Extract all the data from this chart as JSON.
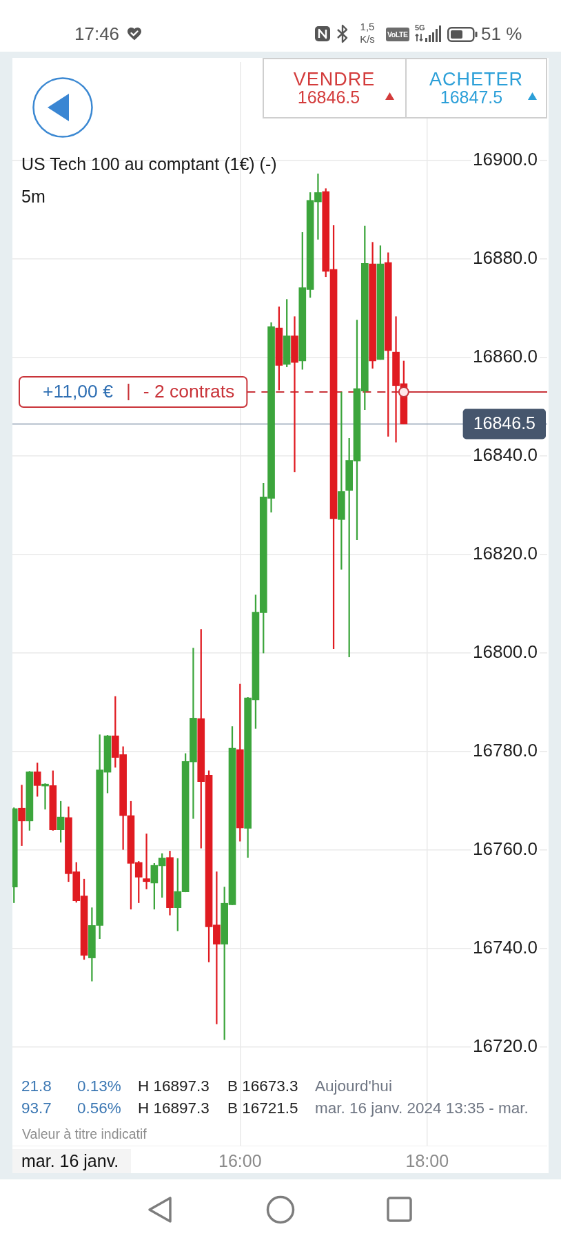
{
  "chart_data": {
    "type": "candlestick",
    "title": "US Tech 100 au comptant (1€) (-)",
    "subtitle": "5m",
    "x": [
      "2024-01-16T13:35",
      "2024-01-16T13:40",
      "2024-01-16T13:45",
      "2024-01-16T13:50",
      "2024-01-16T13:55",
      "2024-01-16T14:00",
      "2024-01-16T14:05",
      "2024-01-16T14:10",
      "2024-01-16T14:15",
      "2024-01-16T14:20",
      "2024-01-16T14:25",
      "2024-01-16T14:30",
      "2024-01-16T14:35",
      "2024-01-16T14:40",
      "2024-01-16T14:45",
      "2024-01-16T14:50",
      "2024-01-16T14:55",
      "2024-01-16T15:00",
      "2024-01-16T15:05",
      "2024-01-16T15:10",
      "2024-01-16T15:15",
      "2024-01-16T15:20",
      "2024-01-16T15:25",
      "2024-01-16T15:30",
      "2024-01-16T15:35",
      "2024-01-16T15:40",
      "2024-01-16T15:45",
      "2024-01-16T15:50",
      "2024-01-16T15:55",
      "2024-01-16T16:00",
      "2024-01-16T16:05",
      "2024-01-16T16:10",
      "2024-01-16T16:15",
      "2024-01-16T16:20",
      "2024-01-16T16:25",
      "2024-01-16T16:30",
      "2024-01-16T16:35",
      "2024-01-16T16:40",
      "2024-01-16T16:45",
      "2024-01-16T16:50",
      "2024-01-16T16:55",
      "2024-01-16T17:00",
      "2024-01-16T17:05",
      "2024-01-16T17:10",
      "2024-01-16T17:15",
      "2024-01-16T17:20",
      "2024-01-16T17:25",
      "2024-01-16T17:30",
      "2024-01-16T17:35",
      "2024-01-16T17:40",
      "2024-01-16T17:45"
    ],
    "ohlc": [
      [
        16752.5,
        16768.6,
        16749.3,
        16768.4
      ],
      [
        16768.5,
        16773.2,
        16760.9,
        16765.9
      ],
      [
        16765.9,
        16776.0,
        16764.0,
        16775.9
      ],
      [
        16775.9,
        16777.7,
        16770.9,
        16773.1
      ],
      [
        16773.0,
        16773.5,
        16768.3,
        16773.4
      ],
      [
        16773.1,
        16776.1,
        16764.0,
        16764.1
      ],
      [
        16764.1,
        16769.9,
        16761.6,
        16766.7
      ],
      [
        16766.6,
        16768.8,
        16753.6,
        16755.2
      ],
      [
        16755.6,
        16757.5,
        16749.4,
        16749.7
      ],
      [
        16750.7,
        16754.1,
        16737.8,
        16738.6
      ],
      [
        16738.1,
        16748.3,
        16733.4,
        16744.7
      ],
      [
        16744.7,
        16783.4,
        16742.0,
        16776.3
      ],
      [
        16775.8,
        16783.3,
        16771.6,
        16783.2
      ],
      [
        16783.2,
        16791.2,
        16776.8,
        16778.8
      ],
      [
        16779.4,
        16781.0,
        16760.1,
        16767.0
      ],
      [
        16767.0,
        16769.9,
        16748.0,
        16757.3
      ],
      [
        16757.5,
        16757.7,
        16749.3,
        16754.5
      ],
      [
        16754.2,
        16763.3,
        16752.1,
        16753.6
      ],
      [
        16753.3,
        16757.3,
        16748.0,
        16756.9
      ],
      [
        16756.8,
        16759.3,
        16750.4,
        16758.4
      ],
      [
        16758.5,
        16759.8,
        16746.8,
        16748.3
      ],
      [
        16748.3,
        16758.3,
        16743.6,
        16751.6
      ],
      [
        16751.5,
        16779.6,
        16751.5,
        16778.0
      ],
      [
        16777.9,
        16801.0,
        16766.4,
        16786.8
      ],
      [
        16786.7,
        16804.8,
        16760.4,
        16773.9
      ],
      [
        16775.2,
        16776.1,
        16737.3,
        16744.4
      ],
      [
        16744.8,
        16755.6,
        16724.7,
        16740.9
      ],
      [
        16740.9,
        16752.5,
        16721.5,
        16749.2
      ],
      [
        16748.9,
        16785.1,
        16748.9,
        16780.7
      ],
      [
        16780.4,
        16793.7,
        16761.8,
        16764.5
      ],
      [
        16764.4,
        16791.0,
        16758.5,
        16790.9
      ],
      [
        16790.5,
        16811.8,
        16784.7,
        16808.3
      ],
      [
        16808.2,
        16834.5,
        16800.0,
        16831.7
      ],
      [
        16831.4,
        16867.1,
        16828.6,
        16866.3
      ],
      [
        16866.0,
        16870.3,
        16853.4,
        16858.4
      ],
      [
        16858.6,
        16871.8,
        16858.1,
        16864.4
      ],
      [
        16864.4,
        16868.3,
        16836.8,
        16859.0
      ],
      [
        16859.3,
        16885.4,
        16857.6,
        16874.2
      ],
      [
        16873.8,
        16893.5,
        16872.2,
        16891.9
      ],
      [
        16891.6,
        16897.3,
        16884.0,
        16893.5
      ],
      [
        16893.7,
        16894.3,
        16876.4,
        16877.5
      ],
      [
        16877.9,
        16886.8,
        16800.9,
        16827.3
      ],
      [
        16827.1,
        16853.0,
        16817.0,
        16832.8
      ],
      [
        16833.0,
        16843.6,
        16799.2,
        16839.1
      ],
      [
        16839.0,
        16867.6,
        16823.0,
        16853.7
      ],
      [
        16853.2,
        16886.7,
        16849.4,
        16879.1
      ],
      [
        16879.0,
        16883.4,
        16857.8,
        16859.3
      ],
      [
        16859.6,
        16882.7,
        16859.6,
        16879.0
      ],
      [
        16879.3,
        16881.3,
        16844.0,
        16861.4
      ],
      [
        16861.1,
        16868.3,
        16842.8,
        16854.3
      ],
      [
        16854.7,
        16859.3,
        16846.5,
        16846.5
      ]
    ],
    "colors": [
      "#3ca53c",
      "#e01b21",
      "#3ca53c",
      "#e01b21",
      "#3ca53c",
      "#e01b21",
      "#3ca53c",
      "#e01b21",
      "#e01b21",
      "#e01b21",
      "#3ca53c",
      "#3ca53c",
      "#3ca53c",
      "#e01b21",
      "#e01b21",
      "#e01b21",
      "#e01b21",
      "#e01b21",
      "#3ca53c",
      "#3ca53c",
      "#e01b21",
      "#3ca53c",
      "#3ca53c",
      "#3ca53c",
      "#e01b21",
      "#e01b21",
      "#e01b21",
      "#3ca53c",
      "#3ca53c",
      "#e01b21",
      "#3ca53c",
      "#3ca53c",
      "#3ca53c",
      "#3ca53c",
      "#e01b21",
      "#3ca53c",
      "#e01b21",
      "#3ca53c",
      "#3ca53c",
      "#3ca53c",
      "#e01b21",
      "#e01b21",
      "#3ca53c",
      "#3ca53c",
      "#3ca53c",
      "#3ca53c",
      "#e01b21",
      "#3ca53c",
      "#e01b21",
      "#e01b21",
      "#e01b21"
    ],
    "xlim": [
      "2024-01-16T13:34",
      "2024-01-16T19:17"
    ],
    "ylim": [
      16700,
      16920
    ],
    "xticks": [
      {
        "value": "2024-01-16T16:00",
        "label": "16:00"
      },
      {
        "value": "2024-01-16T18:00",
        "label": "18:00"
      }
    ],
    "yticks": [
      {
        "value": 16720,
        "label": "16720.0"
      },
      {
        "value": 16740,
        "label": "16740.0"
      },
      {
        "value": 16760,
        "label": "16760.0"
      },
      {
        "value": 16780,
        "label": "16780.0"
      },
      {
        "value": 16800,
        "label": "16800.0"
      },
      {
        "value": 16820,
        "label": "16820.0"
      },
      {
        "value": 16840,
        "label": "16840.0"
      },
      {
        "value": 16860,
        "label": "16860.0"
      },
      {
        "value": 16880,
        "label": "16880.0"
      },
      {
        "value": 16900,
        "label": "16900.0"
      }
    ],
    "grid": true,
    "ref_lines": [
      {
        "axis": "y",
        "value": 16853.0,
        "label": "+11,00 € | - 2 contrats",
        "color": "#c9343a",
        "line_style": "dashed"
      },
      {
        "axis": "y",
        "value": 16846.5,
        "label": "16846.5",
        "color": "#8d9cb1"
      }
    ],
    "annotations": [
      "17:46",
      "1,5 K/s",
      "VoLTE",
      "5G",
      "51 %",
      "VENDRE",
      "16846.5",
      "ACHETER",
      "16847.5",
      "21.8",
      "0.13%",
      "H 16897.3",
      "B 16673.3",
      "Aujourd'hui",
      "93.7",
      "0.56%",
      "H 16897.3",
      "B 16721.5",
      "mar. 16 janv. 2024 13:35 - mar.",
      "Valeur à titre indicatif",
      "mar. 16 janv."
    ]
  }
}
